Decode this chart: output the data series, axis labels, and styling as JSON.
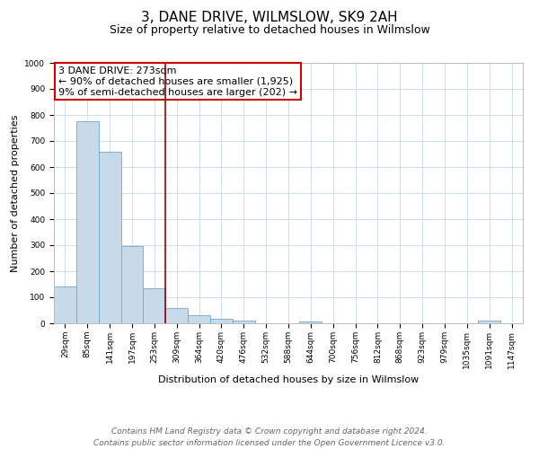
{
  "title": "3, DANE DRIVE, WILMSLOW, SK9 2AH",
  "subtitle": "Size of property relative to detached houses in Wilmslow",
  "xlabel": "Distribution of detached houses by size in Wilmslow",
  "ylabel": "Number of detached properties",
  "bin_labels": [
    "29sqm",
    "85sqm",
    "141sqm",
    "197sqm",
    "253sqm",
    "309sqm",
    "364sqm",
    "420sqm",
    "476sqm",
    "532sqm",
    "588sqm",
    "644sqm",
    "700sqm",
    "756sqm",
    "812sqm",
    "868sqm",
    "923sqm",
    "979sqm",
    "1035sqm",
    "1091sqm",
    "1147sqm"
  ],
  "bar_heights": [
    140,
    775,
    657,
    295,
    135,
    57,
    32,
    18,
    10,
    0,
    0,
    8,
    0,
    0,
    0,
    0,
    0,
    0,
    0,
    9,
    0
  ],
  "bar_color": "#c8daea",
  "bar_edge_color": "#6aaad4",
  "grid_color": "#d0dfe8",
  "annotation_box_text": "3 DANE DRIVE: 273sqm\n← 90% of detached houses are smaller (1,925)\n9% of semi-detached houses are larger (202) →",
  "annotation_box_color": "#ffffff",
  "annotation_box_edge_color": "#cc0000",
  "vline_x": 4.5,
  "vline_color": "#990000",
  "ylim": [
    0,
    1000
  ],
  "yticks": [
    0,
    100,
    200,
    300,
    400,
    500,
    600,
    700,
    800,
    900,
    1000
  ],
  "footer_line1": "Contains HM Land Registry data © Crown copyright and database right 2024.",
  "footer_line2": "Contains public sector information licensed under the Open Government Licence v3.0.",
  "title_fontsize": 11,
  "subtitle_fontsize": 9,
  "label_fontsize": 8,
  "tick_fontsize": 6.5,
  "footer_fontsize": 6.5,
  "annotation_fontsize": 8
}
